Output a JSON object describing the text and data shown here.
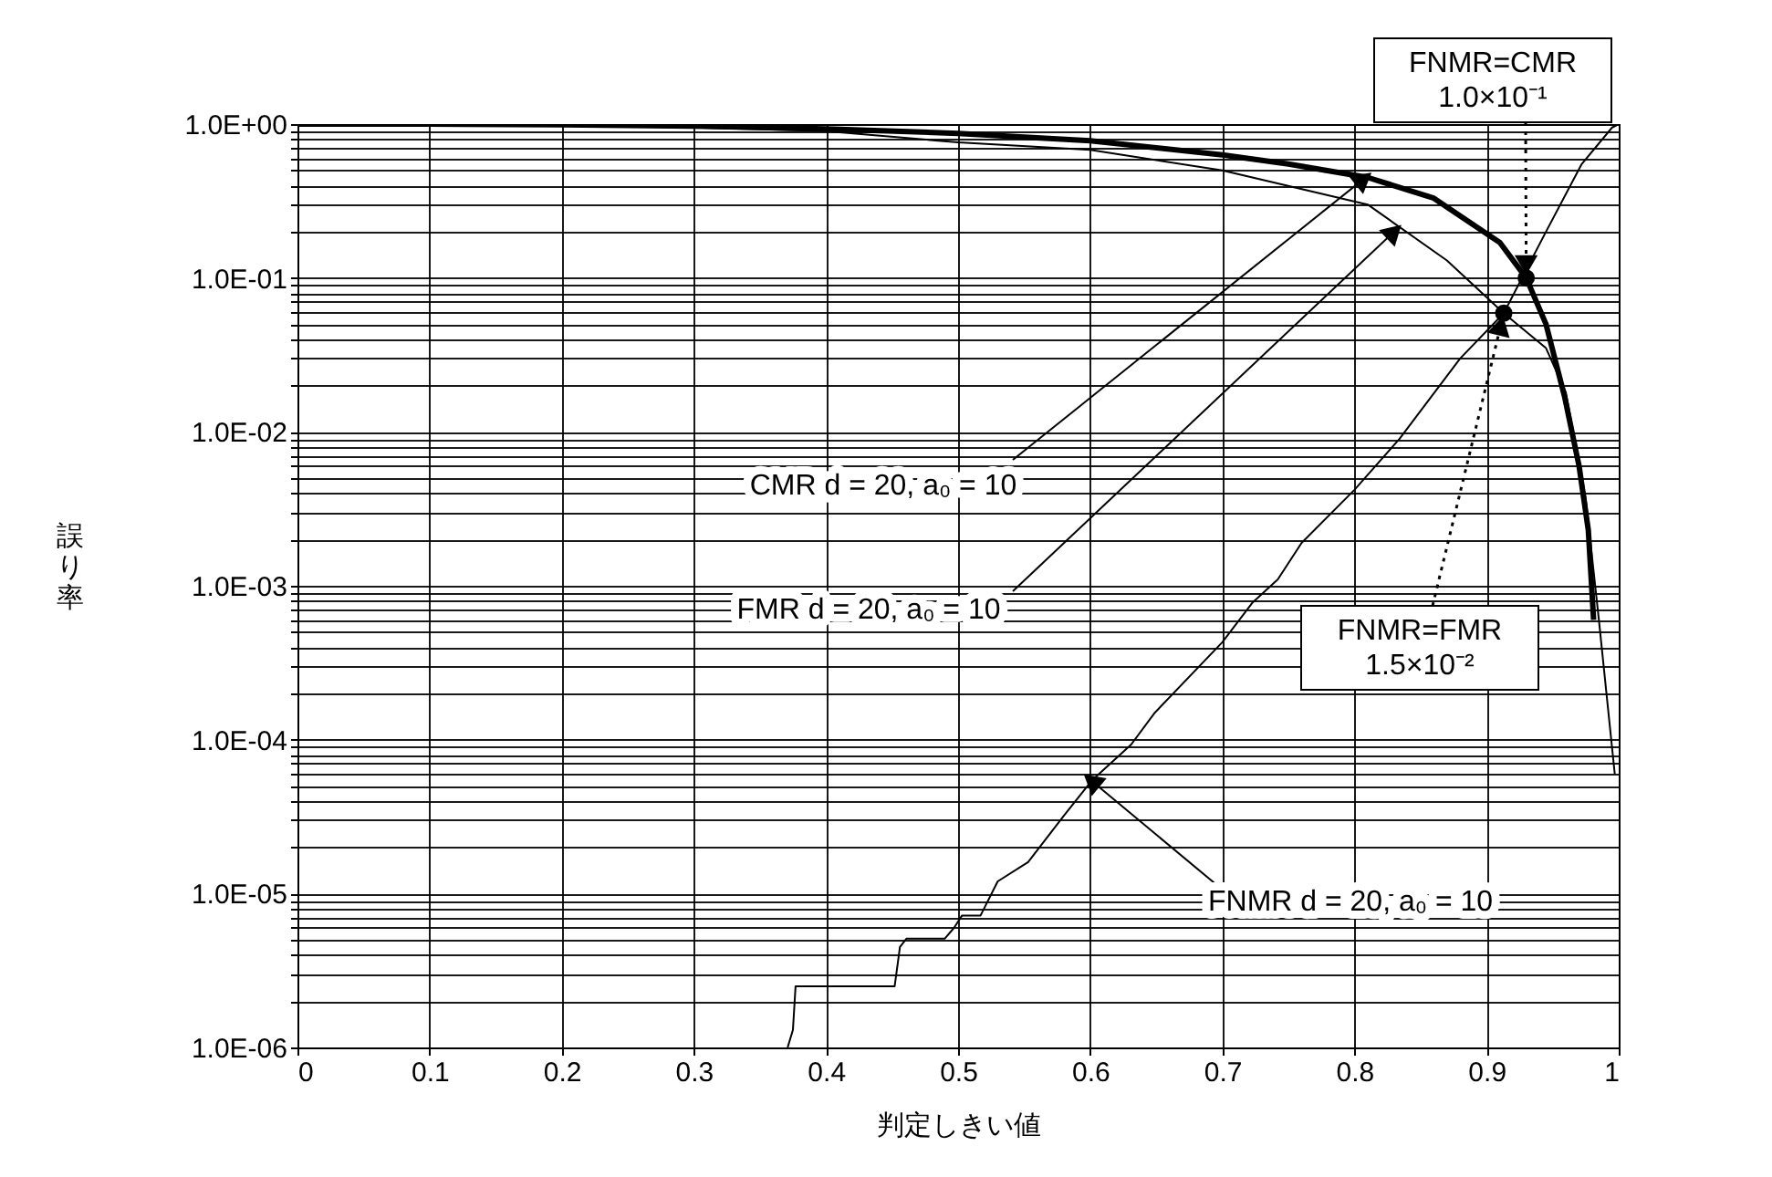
{
  "chart_data": {
    "type": "line",
    "xlabel": "判定しきい値",
    "ylabel": "誤り率",
    "xlim": [
      0,
      1
    ],
    "xticks": [
      0,
      0.1,
      0.2,
      0.3,
      0.4,
      0.5,
      0.6,
      0.7,
      0.8,
      0.9,
      1
    ],
    "ylim": [
      1e-06,
      1
    ],
    "log": true,
    "yticks": [
      {
        "value": 1e-06,
        "label": "1.0E-06"
      },
      {
        "value": 2e-06,
        "label": null
      },
      {
        "value": 3e-06,
        "label": null
      },
      {
        "value": 4e-06,
        "label": null
      },
      {
        "value": 5e-06,
        "label": null
      },
      {
        "value": 6e-06,
        "label": null
      },
      {
        "value": 7e-06,
        "label": null
      },
      {
        "value": 8e-06,
        "label": null
      },
      {
        "value": 9e-06,
        "label": null
      },
      {
        "value": 1e-05,
        "label": "1.0E-05"
      },
      {
        "value": 2e-05,
        "label": null
      },
      {
        "value": 3e-05,
        "label": null
      },
      {
        "value": 4e-05,
        "label": null
      },
      {
        "value": 5e-05,
        "label": null
      },
      {
        "value": 6e-05,
        "label": null
      },
      {
        "value": 7e-05,
        "label": null
      },
      {
        "value": 8e-05,
        "label": null
      },
      {
        "value": 9e-05,
        "label": null
      },
      {
        "value": 0.0001,
        "label": "1.0E-04"
      },
      {
        "value": 0.0002,
        "label": null
      },
      {
        "value": 0.0003,
        "label": null
      },
      {
        "value": 0.0004,
        "label": null
      },
      {
        "value": 0.0005,
        "label": null
      },
      {
        "value": 0.0006,
        "label": null
      },
      {
        "value": 0.0007,
        "label": null
      },
      {
        "value": 0.0008,
        "label": null
      },
      {
        "value": 0.0009,
        "label": null
      },
      {
        "value": 0.001,
        "label": "1.0E-03"
      },
      {
        "value": 0.002,
        "label": null
      },
      {
        "value": 0.003,
        "label": null
      },
      {
        "value": 0.004,
        "label": null
      },
      {
        "value": 0.005,
        "label": null
      },
      {
        "value": 0.006,
        "label": null
      },
      {
        "value": 0.007,
        "label": null
      },
      {
        "value": 0.008,
        "label": null
      },
      {
        "value": 0.009,
        "label": null
      },
      {
        "value": 0.01,
        "label": "1.0E-02"
      },
      {
        "value": 0.02,
        "label": null
      },
      {
        "value": 0.03,
        "label": null
      },
      {
        "value": 0.04,
        "label": null
      },
      {
        "value": 0.05,
        "label": null
      },
      {
        "value": 0.06,
        "label": null
      },
      {
        "value": 0.07,
        "label": null
      },
      {
        "value": 0.08,
        "label": null
      },
      {
        "value": 0.09,
        "label": null
      },
      {
        "value": 0.1,
        "label": "1.0E-01"
      },
      {
        "value": 0.2,
        "label": null
      },
      {
        "value": 0.3,
        "label": null
      },
      {
        "value": 0.4,
        "label": null
      },
      {
        "value": 0.5,
        "label": null
      },
      {
        "value": 0.6,
        "label": null
      },
      {
        "value": 0.7,
        "label": null
      },
      {
        "value": 0.8,
        "label": null
      },
      {
        "value": 0.9,
        "label": null
      },
      {
        "value": 1,
        "label": "1.0E+00"
      }
    ],
    "grid": true,
    "marker": "none",
    "line_style": "solid",
    "series": [
      {
        "color": "#000000",
        "x": [
          0,
          0.1,
          0.2,
          0.3,
          0.4,
          0.5,
          0.6,
          0.7,
          0.75,
          0.81,
          0.86,
          0.91,
          0.93,
          0.945,
          0.959,
          0.97,
          0.977,
          0.981
        ],
        "values": [
          1,
          1,
          0.99,
          0.97,
          0.93,
          0.87,
          0.78,
          0.63,
          0.55,
          0.45,
          0.33,
          0.17,
          0.1,
          0.05,
          0.017,
          0.006,
          0.0023,
          0.0006
        ]
      },
      {
        "color": "#000000",
        "x": [
          0,
          0.1,
          0.2,
          0.3,
          0.4,
          0.5,
          0.6,
          0.7,
          0.81,
          0.87,
          0.913,
          0.945,
          0.96,
          0.975,
          0.985,
          0.997
        ],
        "values": [
          1,
          1,
          0.98,
          0.95,
          0.9,
          0.76,
          0.68,
          0.5,
          0.3,
          0.13,
          0.059,
          0.035,
          0.018,
          0.0037,
          0.0006,
          6e-05
        ]
      },
      {
        "color": "#000000",
        "x": [
          0.371,
          0.375,
          0.377,
          0.452,
          0.456,
          0.461,
          0.49,
          0.497,
          0.503,
          0.517,
          0.53,
          0.553,
          0.58,
          0.601,
          0.631,
          0.649,
          0.7,
          0.723,
          0.742,
          0.76,
          0.8,
          0.834,
          0.88,
          0.913,
          0.945,
          0.972,
          0.995,
          1.0
        ],
        "values": [
          1e-06,
          1.3e-06,
          2.5e-06,
          2.5e-06,
          4.5e-06,
          5.1e-06,
          5.1e-06,
          6e-06,
          7.2e-06,
          7.2e-06,
          1.2e-05,
          1.6e-05,
          3.2e-05,
          5.4e-05,
          9.3e-05,
          0.00015,
          0.00043,
          0.00078,
          0.0011,
          0.0019,
          0.0042,
          0.009,
          0.03,
          0.059,
          0.2,
          0.55,
          0.95,
          1.0
        ]
      }
    ],
    "annotations": [
      {
        "text": "FNMR=CMR\n1.0×10⁻¹",
        "x": 0.93,
        "y": 0.1
      },
      {
        "text": "FNMR=FMR\n1.5×10⁻²",
        "x": 0.913,
        "y": 0.059
      },
      {
        "text": "CMR d = 20, a₀ = 10",
        "x": 0.807,
        "y": 0.44
      },
      {
        "text": "FMR d = 20, a₀ = 10",
        "x": 0.83,
        "y": 0.2
      },
      {
        "text": "FNMR d = 20, a₀ = 10",
        "x": 0.601,
        "y": 5.4e-05
      }
    ]
  }
}
